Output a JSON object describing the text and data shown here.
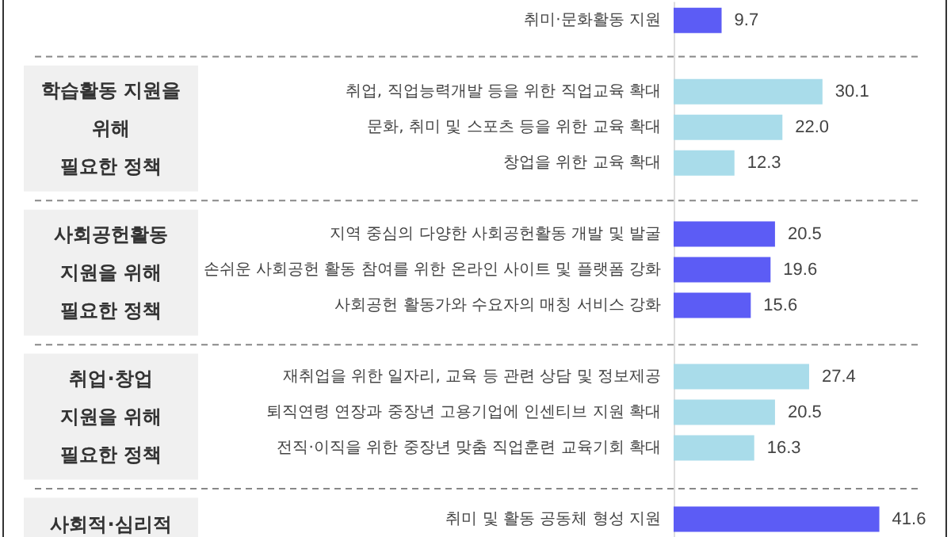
{
  "chart_data": {
    "type": "bar",
    "orientation": "horizontal",
    "tick_labels": "y",
    "xlim": [
      0,
      50
    ],
    "categories": [
      "취미·문화활동 지원",
      null,
      "취업, 직업능력개발 등을 위한 직업교육 확대",
      "문화, 취미 및 스포츠 등을 위한 교육 확대",
      "창업을 위한 교육 확대",
      null,
      "지역 중심의 다양한 사회공헌활동 개발 및 발굴",
      "손쉬운 사회공헌 활동 참여를 위한 온라인 사이트 및 플랫폼 강화",
      "사회공헌 활동가와 수요자의 매칭 서비스 강화",
      null,
      "재취업을 위한 일자리, 교육 등 관련 상담 및 정보제공",
      "퇴직연령 연장과 중장년 고용기업에 인센티브 지원 확대",
      "전직·이직을 위한 중장년 맞춤 직업훈련 교육기회 확대",
      null,
      "취미 및 활동 공동체 형성 지원"
    ],
    "values": [
      9.7,
      null,
      30.1,
      22,
      12.3,
      null,
      20.5,
      19.6,
      15.6,
      null,
      27.4,
      20.5,
      16.3,
      null,
      41.6
    ],
    "value_labels": [
      "9.7",
      null,
      "30.1",
      "22.0",
      "12.3",
      null,
      "20.5",
      "19.6",
      "15.6",
      null,
      "27.4",
      "20.5",
      "16.3",
      null,
      "41.6"
    ],
    "colors": [
      "#5c5cf5",
      null,
      "#a9dcea",
      "#a9dcea",
      "#a9dcea",
      null,
      "#5c5cf5",
      "#5c5cf5",
      "#5c5cf5",
      null,
      "#a9dcea",
      "#a9dcea",
      "#a9dcea",
      null,
      "#5c5cf5"
    ],
    "annotations": [
      "학습활동 지원을\n위해\n필요한 정책",
      "사회공헌활동\n지원을 위해\n필요한 정책",
      "취업·창업\n지원을 위해\n필요한 정책",
      "사회적·심리적"
    ]
  }
}
